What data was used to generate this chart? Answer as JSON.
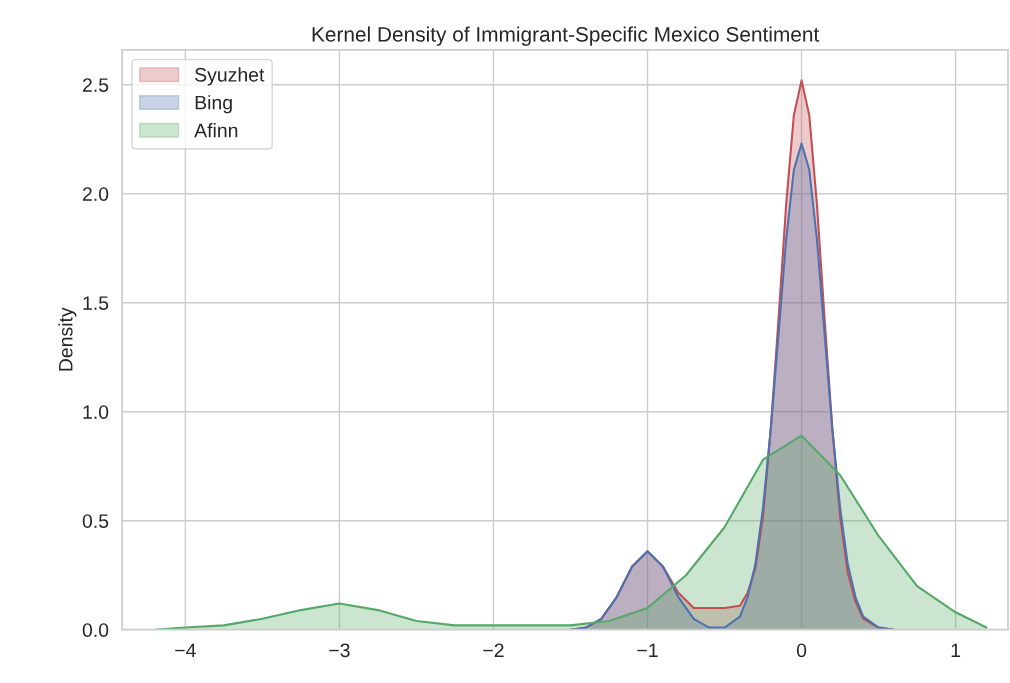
{
  "chart_data": {
    "type": "area",
    "title": "Kernel Density of Immigrant-Specific Mexico Sentiment",
    "ylabel": "Density",
    "series": [
      {
        "name": "Syuzhet",
        "color": "#c44e52",
        "x": [
          -1.5,
          -1.4,
          -1.3,
          -1.2,
          -1.1,
          -1.0,
          -0.9,
          -0.8,
          -0.7,
          -0.6,
          -0.5,
          -0.4,
          -0.35,
          -0.3,
          -0.25,
          -0.2,
          -0.15,
          -0.1,
          -0.05,
          0,
          0.05,
          0.1,
          0.15,
          0.2,
          0.25,
          0.3,
          0.35,
          0.4,
          0.5,
          0.6
        ],
        "values": [
          0,
          0.01,
          0.05,
          0.15,
          0.29,
          0.36,
          0.29,
          0.17,
          0.1,
          0.1,
          0.1,
          0.11,
          0.17,
          0.28,
          0.52,
          0.92,
          1.42,
          1.95,
          2.36,
          2.52,
          2.36,
          1.95,
          1.42,
          0.92,
          0.52,
          0.26,
          0.13,
          0.05,
          0.01,
          0
        ]
      },
      {
        "name": "Bing",
        "color": "#4c72b0",
        "x": [
          -1.5,
          -1.4,
          -1.3,
          -1.2,
          -1.1,
          -1.0,
          -0.9,
          -0.8,
          -0.7,
          -0.6,
          -0.5,
          -0.4,
          -0.35,
          -0.3,
          -0.25,
          -0.2,
          -0.15,
          -0.1,
          -0.05,
          0,
          0.05,
          0.1,
          0.15,
          0.2,
          0.25,
          0.3,
          0.35,
          0.4,
          0.5,
          0.6
        ],
        "values": [
          0,
          0.01,
          0.05,
          0.15,
          0.29,
          0.36,
          0.29,
          0.15,
          0.05,
          0.01,
          0.01,
          0.06,
          0.15,
          0.3,
          0.56,
          0.92,
          1.35,
          1.79,
          2.11,
          2.23,
          2.11,
          1.79,
          1.35,
          0.92,
          0.56,
          0.3,
          0.15,
          0.06,
          0.01,
          0
        ]
      },
      {
        "name": "Afinn",
        "color": "#55a868",
        "x": [
          -4.2,
          -4,
          -3.75,
          -3.5,
          -3.25,
          -3,
          -2.75,
          -2.5,
          -2.25,
          -2,
          -1.75,
          -1.5,
          -1.25,
          -1,
          -0.75,
          -0.5,
          -0.25,
          0,
          0.25,
          0.5,
          0.75,
          1,
          1.2
        ],
        "values": [
          0,
          0.01,
          0.02,
          0.05,
          0.09,
          0.12,
          0.09,
          0.04,
          0.02,
          0.02,
          0.02,
          0.02,
          0.04,
          0.1,
          0.25,
          0.47,
          0.78,
          0.89,
          0.71,
          0.43,
          0.2,
          0.08,
          0.01
        ]
      }
    ],
    "xlim": [
      -4.41,
      1.34
    ],
    "ylim": [
      0,
      2.66
    ],
    "xticks": [
      {
        "value": -4,
        "label": "−4"
      },
      {
        "value": -3,
        "label": "−3"
      },
      {
        "value": -2,
        "label": "−2"
      },
      {
        "value": -1,
        "label": "−1"
      },
      0,
      1
    ],
    "yticks": [
      {
        "value": 0,
        "label": "0.0"
      },
      0.5,
      {
        "value": 1,
        "label": "1.0"
      },
      1.5,
      {
        "value": 2,
        "label": "2.0"
      },
      2.5
    ],
    "grid": true,
    "legend": "top left"
  }
}
